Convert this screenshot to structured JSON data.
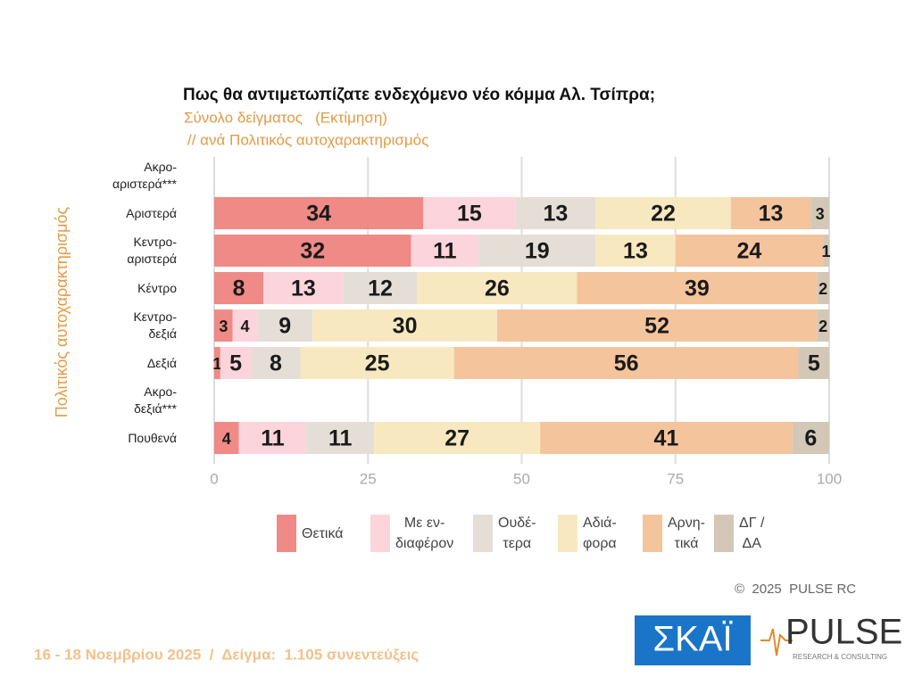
{
  "chart_data": {
    "type": "stacked-bar-horizontal",
    "title": "Πως θα αντιμετωπίζατε ενδεχόμενο νέο κόμμα Αλ. Τσίπρα;",
    "subtitle": "Σύνολο δείγματος   (Εκτίμηση)",
    "subtitle2": "// ανά Πολιτικός αυτοχαρακτηρισμός",
    "y_label": "Πολιτικός αυτοχαρακτηρισμός",
    "categories": [
      "Ακρο-\nαριστερά***",
      "Αριστερά",
      "Κεντρο-\nαριστερά",
      "Κέντρο",
      "Κεντρο-\nδεξιά",
      "Δεξιά",
      "Ακρο-\nδεξιά***",
      "Πουθενά"
    ],
    "series": [
      {
        "name": "Θετικά",
        "color": "#ef8a86",
        "values": [
          null,
          34,
          32,
          8,
          3,
          1,
          null,
          4
        ]
      },
      {
        "name": "Με εν-\nδιαφέρον",
        "color": "#fcd4dc",
        "values": [
          null,
          15,
          11,
          13,
          4,
          5,
          null,
          11
        ]
      },
      {
        "name": "Ουδέ-\nτερα",
        "color": "#e4ded6",
        "values": [
          null,
          13,
          19,
          12,
          9,
          8,
          null,
          11
        ]
      },
      {
        "name": "Αδιά-\nφορα",
        "color": "#f7e8c0",
        "values": [
          null,
          22,
          13,
          26,
          30,
          25,
          null,
          27
        ]
      },
      {
        "name": "Αρνη-\nτικά",
        "color": "#f4c49c",
        "values": [
          null,
          13,
          24,
          39,
          52,
          56,
          null,
          41
        ]
      },
      {
        "name": "ΔΓ /\nΔΑ",
        "color": "#d3c8b7",
        "values": [
          null,
          3,
          1,
          2,
          2,
          5,
          null,
          6
        ]
      }
    ],
    "xlim": [
      0,
      100
    ],
    "xticks": [
      0,
      25,
      50,
      75,
      100
    ],
    "grid": true,
    "legend": "bottom"
  },
  "footer": "16 - 18 Νοεμβρίου 2025  /  Δείγμα:  1.105 συνεντεύξεις",
  "copyright": "©  2025  PULSE RC",
  "logos": {
    "skai": "ΣΚΑΪ",
    "pulse": "PULSE",
    "pulse_sub": "RESEARCH & CONSULTING"
  }
}
